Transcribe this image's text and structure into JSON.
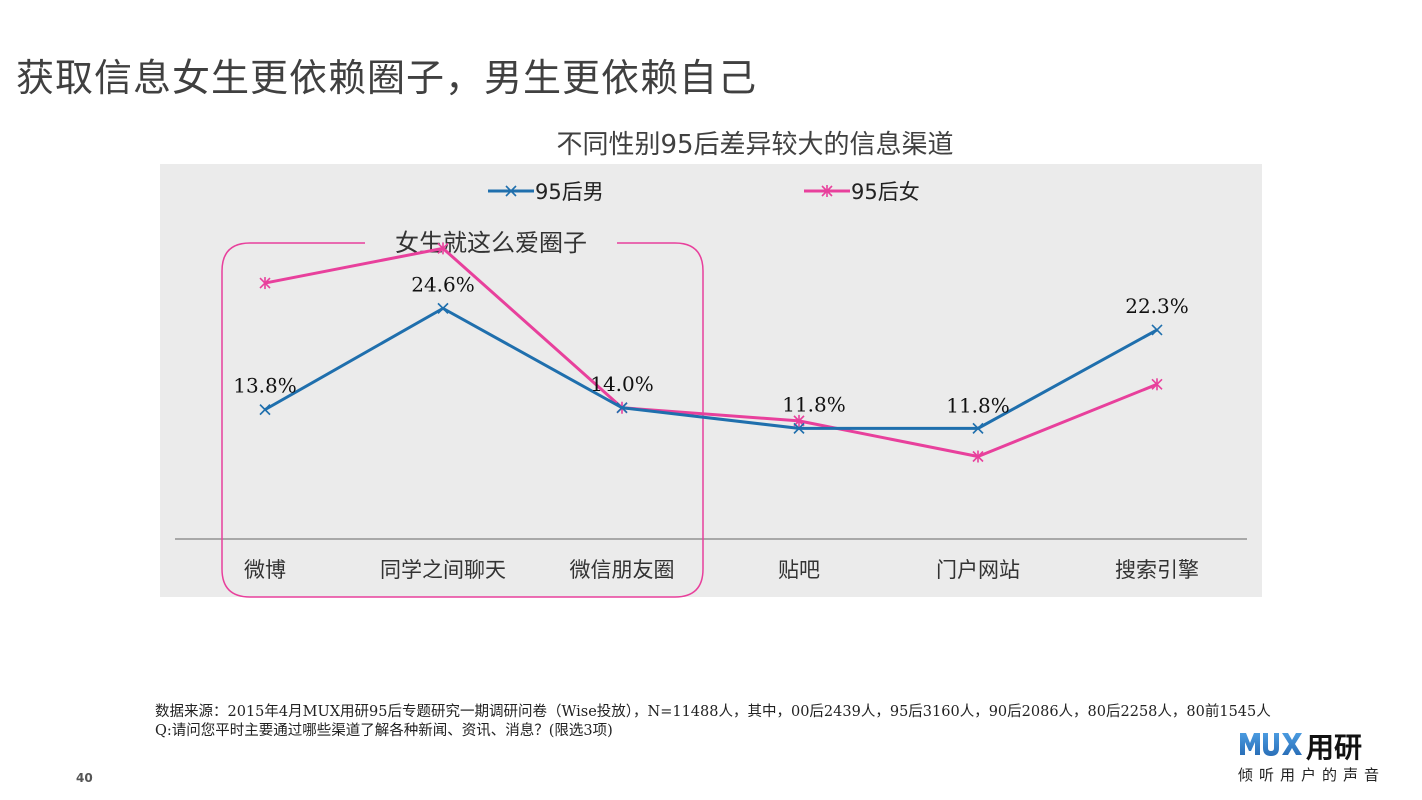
{
  "page": {
    "title": "获取信息女生更依赖圈子，男生更依赖自己",
    "page_number": "40"
  },
  "chart_data": {
    "type": "line",
    "title": "不同性别95后差异较大的信息渠道",
    "categories": [
      "微博",
      "同学之间聊天",
      "微信朋友圈",
      "贴吧",
      "门户网站",
      "搜索引擎"
    ],
    "series": [
      {
        "name": "95后男",
        "color": "#1f6fad",
        "marker": "x",
        "values": [
          13.8,
          24.6,
          14.0,
          11.8,
          11.8,
          22.3
        ],
        "labels": [
          "13.8%",
          "24.6%",
          "14.0%",
          "11.8%",
          "11.8%",
          "22.3%"
        ]
      },
      {
        "name": "95后女",
        "color": "#e8409c",
        "marker": "star",
        "values": [
          27.3,
          31.0,
          14.0,
          12.6,
          8.8,
          16.5
        ]
      }
    ],
    "ylim": [
      0,
      40
    ],
    "grid": false,
    "legend": "top",
    "annotation": {
      "text": "女生就这么爱圈子",
      "color": "#e8409c"
    }
  },
  "footer": {
    "source_line1": "数据来源：2015年4月MUX用研95后专题研究一期调研问卷（Wise投放），N=11488人，其中，00后2439人，95后3160人，90后2086人，80后2258人，80前1545人",
    "source_line2": "Q:请问您平时主要通过哪些渠道了解各种新闻、资讯、消息？(限选3项)"
  },
  "logo": {
    "mark": "MUX",
    "name_cn": "用研",
    "tagline": "倾听用户的声音",
    "colors": [
      "#2a6fb8",
      "#4b9be0"
    ]
  }
}
